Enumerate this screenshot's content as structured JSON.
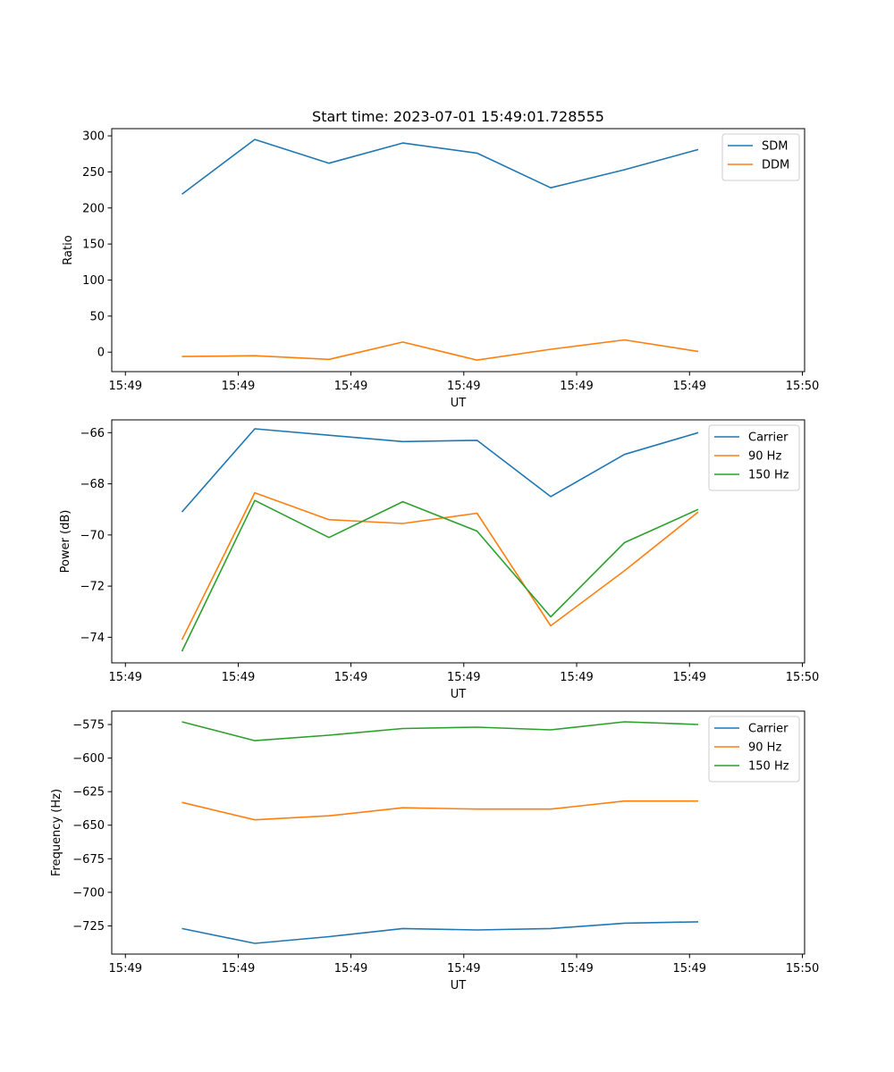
{
  "chart_data": [
    {
      "type": "line",
      "title": "Start time: 2023-07-01 15:49:01.728555",
      "xlabel": "UT",
      "ylabel": "Ratio",
      "x_tick_labels": [
        "15:49",
        "15:49",
        "15:49",
        "15:49",
        "15:49",
        "15:49",
        "15:50"
      ],
      "ylim": [
        -27,
        310
      ],
      "y_ticks": [
        0,
        50,
        100,
        150,
        200,
        250,
        300
      ],
      "y_tick_labels": [
        "0",
        "50",
        "100",
        "150",
        "200",
        "250",
        "300"
      ],
      "legend_position": "top-right",
      "series": [
        {
          "name": "SDM",
          "color": "#1f77b4",
          "values": [
            219,
            295,
            262,
            290,
            276,
            228,
            253,
            281
          ]
        },
        {
          "name": "DDM",
          "color": "#ff7f0e",
          "values": [
            -6,
            -5,
            -10,
            14,
            -11,
            4,
            17,
            1
          ]
        }
      ]
    },
    {
      "type": "line",
      "title": "",
      "xlabel": "UT",
      "ylabel": "Power (dB)",
      "x_tick_labels": [
        "15:49",
        "15:49",
        "15:49",
        "15:49",
        "15:49",
        "15:49",
        "15:50"
      ],
      "ylim": [
        -75.0,
        -65.5
      ],
      "y_ticks": [
        -74,
        -72,
        -70,
        -68,
        -66
      ],
      "y_tick_labels": [
        "−74",
        "−72",
        "−70",
        "−68",
        "−66"
      ],
      "legend_position": "top-right",
      "series": [
        {
          "name": "Carrier",
          "color": "#1f77b4",
          "values": [
            -69.1,
            -65.85,
            -66.1,
            -66.35,
            -66.3,
            -68.5,
            -66.85,
            -66.0
          ]
        },
        {
          "name": "90 Hz",
          "color": "#ff7f0e",
          "values": [
            -74.1,
            -68.35,
            -69.4,
            -69.55,
            -69.15,
            -73.55,
            -71.4,
            -69.1
          ]
        },
        {
          "name": "150 Hz",
          "color": "#2ca02c",
          "values": [
            -74.55,
            -68.65,
            -70.1,
            -68.7,
            -69.85,
            -73.2,
            -70.3,
            -69.0
          ]
        }
      ]
    },
    {
      "type": "line",
      "title": "",
      "xlabel": "UT",
      "ylabel": "Frequency (Hz)",
      "x_tick_labels": [
        "15:49",
        "15:49",
        "15:49",
        "15:49",
        "15:49",
        "15:49",
        "15:50"
      ],
      "ylim": [
        -746,
        -565
      ],
      "y_ticks": [
        -725,
        -700,
        -675,
        -650,
        -625,
        -600,
        -575
      ],
      "y_tick_labels": [
        "−725",
        "−700",
        "−675",
        "−650",
        "−625",
        "−600",
        "−575"
      ],
      "legend_position": "top-right",
      "series": [
        {
          "name": "Carrier",
          "color": "#1f77b4",
          "values": [
            -727,
            -738,
            -733,
            -727,
            -728,
            -727,
            -723,
            -722
          ]
        },
        {
          "name": "90 Hz",
          "color": "#ff7f0e",
          "values": [
            -633,
            -646,
            -643,
            -637,
            -638,
            -638,
            -632,
            -632
          ]
        },
        {
          "name": "150 Hz",
          "color": "#2ca02c",
          "values": [
            -573,
            -587,
            -583,
            -578,
            -577,
            -579,
            -573,
            -575
          ]
        }
      ]
    }
  ]
}
